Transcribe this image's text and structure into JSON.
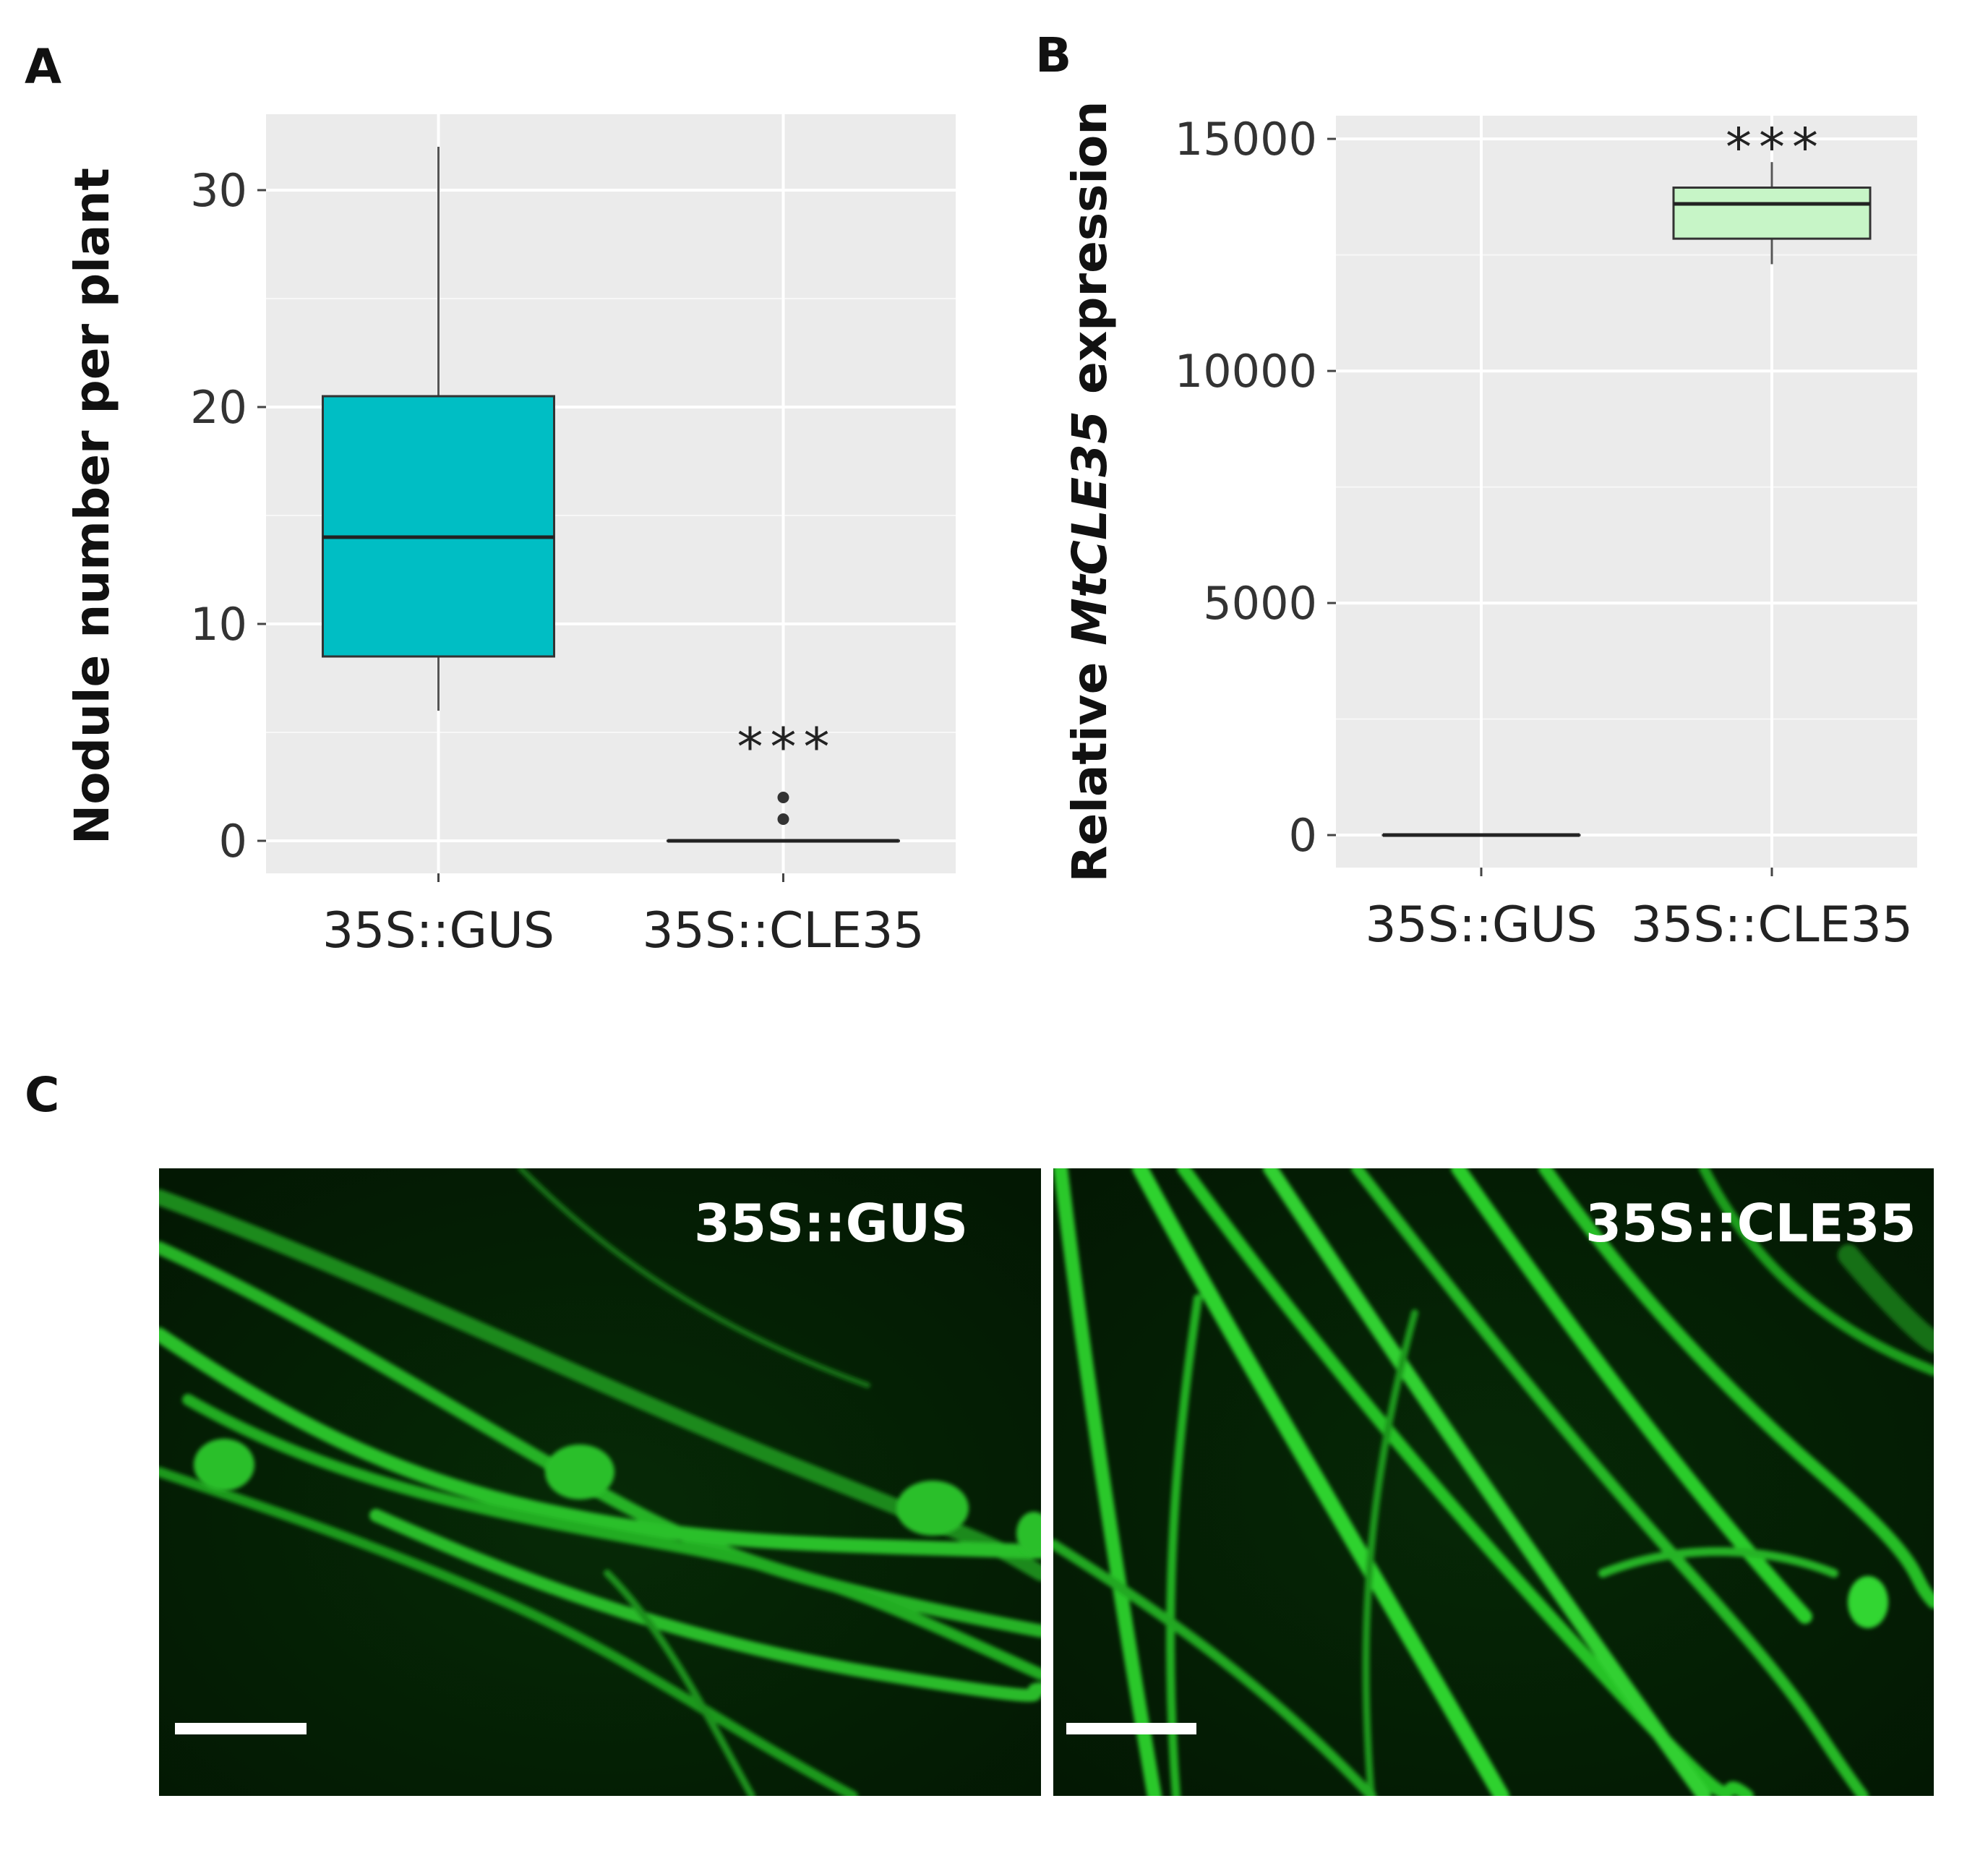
{
  "panels": {
    "a": "A",
    "b": "B",
    "c": "C"
  },
  "chart_data": [
    {
      "type": "box",
      "panel": "A",
      "ylabel": "Nodule number per plant",
      "ylim": [
        -1.5,
        33.5
      ],
      "yticks": [
        0,
        10,
        20,
        30
      ],
      "grid": true,
      "categories": [
        "35S::GUS",
        "35S::CLE35"
      ],
      "boxes": [
        {
          "category": "35S::GUS",
          "whisker_low": 6,
          "q1": 8.5,
          "median": 14,
          "q3": 20.5,
          "whisker_high": 32,
          "outliers": [],
          "fill": "#00bec4"
        },
        {
          "category": "35S::CLE35",
          "whisker_low": 0,
          "q1": 0,
          "median": 0,
          "q3": 0,
          "whisker_high": 0,
          "outliers": [
            1,
            2
          ],
          "fill": "#00bec4"
        }
      ],
      "annotations": [
        {
          "category": "35S::CLE35",
          "text": "***",
          "y": 4.5
        }
      ]
    },
    {
      "type": "box",
      "panel": "B",
      "ylabel_prefix": "Relative ",
      "ylabel_italic": "MtCLE35",
      "ylabel_suffix": " expression",
      "ylim": [
        -700,
        15500
      ],
      "yticks": [
        0,
        5000,
        10000,
        15000
      ],
      "grid": true,
      "categories": [
        "35S::GUS",
        "35S::CLE35"
      ],
      "boxes": [
        {
          "category": "35S::GUS",
          "whisker_low": 0,
          "q1": 0,
          "median": 0,
          "q3": 0,
          "whisker_high": 0,
          "outliers": [],
          "fill": "#c7f5c7"
        },
        {
          "category": "35S::CLE35",
          "whisker_low": 12300,
          "q1": 12850,
          "median": 13600,
          "q3": 13950,
          "whisker_high": 14500,
          "outliers": [],
          "fill": "#c7f5c7"
        }
      ],
      "annotations": [
        {
          "category": "35S::CLE35",
          "text": "***",
          "y": 14900
        }
      ]
    }
  ],
  "micrographs": [
    {
      "label": "35S::GUS"
    },
    {
      "label": "35S::CLE35"
    }
  ],
  "colors": {
    "panel_bg": "#ebebeb",
    "grid": "#ffffff",
    "box_a": "#00bec4",
    "box_b": "#c7f5c7",
    "micro_bg": "#041c04",
    "root_green": "#22d422"
  }
}
